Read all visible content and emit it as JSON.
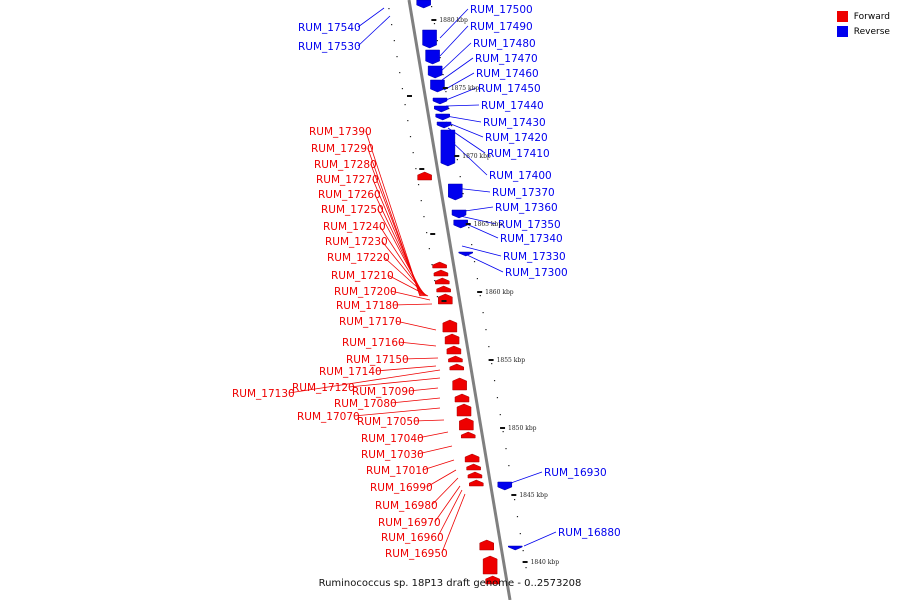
{
  "caption": "Ruminococcus sp. 18P13 draft genome - 0..2573208",
  "legend": [
    {
      "label": "Forward",
      "color": "#ee0000"
    },
    {
      "label": "Reverse",
      "color": "#0000ee"
    }
  ],
  "colors": {
    "forward": "#ee0000",
    "reverse": "#0000ee",
    "genome_line": "#808080"
  },
  "axis_markers": [
    "1880 kbp",
    "1875 kbp",
    "1870 kbp",
    "1865 kbp",
    "1860 kbp",
    "1855 kbp",
    "1850 kbp",
    "1845 kbp",
    "1840 kbp"
  ],
  "genes": {
    "reverse": [
      "RUM_17540",
      "RUM_17530",
      "RUM_17500",
      "RUM_17490",
      "RUM_17480",
      "RUM_17470",
      "RUM_17460",
      "RUM_17450",
      "RUM_17440",
      "RUM_17430",
      "RUM_17420",
      "RUM_17410",
      "RUM_17400",
      "RUM_17370",
      "RUM_17360",
      "RUM_17350",
      "RUM_17340",
      "RUM_17330",
      "RUM_17300",
      "RUM_16930",
      "RUM_16880"
    ],
    "forward": [
      "RUM_17390",
      "RUM_17290",
      "RUM_17280",
      "RUM_17270",
      "RUM_17260",
      "RUM_17250",
      "RUM_17240",
      "RUM_17230",
      "RUM_17220",
      "RUM_17210",
      "RUM_17200",
      "RUM_17180",
      "RUM_17170",
      "RUM_17160",
      "RUM_17150",
      "RUM_17140",
      "RUM_17130",
      "RUM_17120",
      "RUM_17090",
      "RUM_17080",
      "RUM_17070",
      "RUM_17050",
      "RUM_17040",
      "RUM_17030",
      "RUM_17010",
      "RUM_16990",
      "RUM_16980",
      "RUM_16970",
      "RUM_16960",
      "RUM_16950"
    ]
  }
}
